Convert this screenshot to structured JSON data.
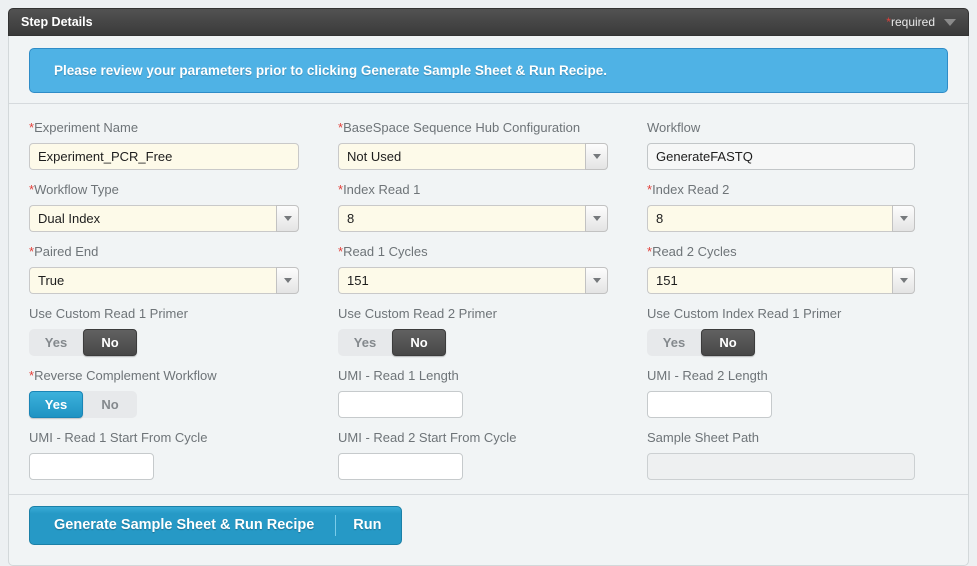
{
  "header": {
    "title": "Step Details",
    "required_star": "*",
    "required_text": "required"
  },
  "banner": {
    "message": "Please review your parameters prior to clicking Generate Sample Sheet & Run Recipe."
  },
  "form": {
    "experiment_name": {
      "star": "*",
      "label": "Experiment Name",
      "value": "Experiment_PCR_Free"
    },
    "basespace_config": {
      "star": "*",
      "label": "BaseSpace Sequence Hub Configuration",
      "value": "Not Used"
    },
    "workflow": {
      "star": "",
      "label": "Workflow",
      "value": "GenerateFASTQ"
    },
    "workflow_type": {
      "star": "*",
      "label": "Workflow Type",
      "value": "Dual Index"
    },
    "index_read_1": {
      "star": "*",
      "label": "Index Read 1",
      "value": "8"
    },
    "index_read_2": {
      "star": "*",
      "label": "Index Read 2",
      "value": "8"
    },
    "paired_end": {
      "star": "*",
      "label": "Paired End",
      "value": "True"
    },
    "read_1_cycles": {
      "star": "*",
      "label": "Read 1 Cycles",
      "value": "151"
    },
    "read_2_cycles": {
      "star": "*",
      "label": "Read 2 Cycles",
      "value": "151"
    },
    "use_custom_read_1_primer": {
      "star": "",
      "label": "Use Custom Read 1 Primer",
      "yes": "Yes",
      "no": "No",
      "selected": "No"
    },
    "use_custom_read_2_primer": {
      "star": "",
      "label": "Use Custom Read 2 Primer",
      "yes": "Yes",
      "no": "No",
      "selected": "No"
    },
    "use_custom_index_read_1_primer": {
      "star": "",
      "label": "Use Custom Index Read 1 Primer",
      "yes": "Yes",
      "no": "No",
      "selected": "No"
    },
    "reverse_complement_workflow": {
      "star": "*",
      "label": "Reverse Complement Workflow",
      "yes": "Yes",
      "no": "No",
      "selected": "Yes"
    },
    "umi_read_1_length": {
      "star": "",
      "label": "UMI - Read 1 Length",
      "value": ""
    },
    "umi_read_2_length": {
      "star": "",
      "label": "UMI - Read 2 Length",
      "value": ""
    },
    "umi_read_1_start_from_cycle": {
      "star": "",
      "label": "UMI - Read 1 Start From Cycle",
      "value": ""
    },
    "umi_read_2_start_from_cycle": {
      "star": "",
      "label": "UMI - Read 2 Start From Cycle",
      "value": ""
    },
    "sample_sheet_path": {
      "star": "",
      "label": "Sample Sheet Path",
      "value": ""
    }
  },
  "footer": {
    "generate_label": "Generate Sample Sheet & Run Recipe",
    "run_label": "Run"
  },
  "colors": {
    "accent_blue": "#2699c6",
    "banner_blue": "#4fb2e5",
    "toggle_selected_dark": "#474747",
    "toggle_selected_blue": "#1f93c3",
    "header_dark": "#3a3a3a",
    "required_red": "#e2403a",
    "input_cream": "#fdfae9"
  }
}
